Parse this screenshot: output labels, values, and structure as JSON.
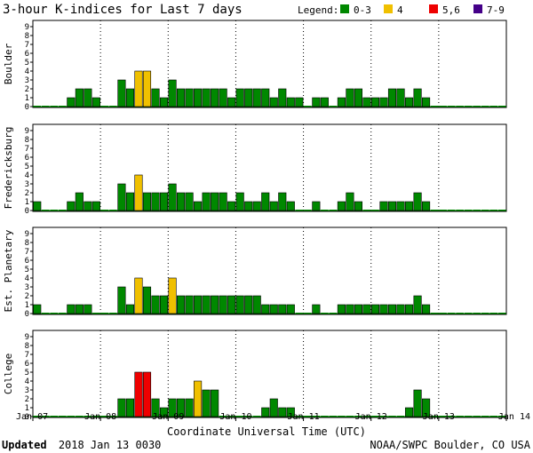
{
  "chart_data": {
    "type": "bar",
    "title": "3-hour K-indices for Last 7 days",
    "legend": {
      "label": "Legend:",
      "position": "top-right",
      "entries": [
        {
          "label": "0-3",
          "color": "#008800"
        },
        {
          "label": "4",
          "color": "#f0c000"
        },
        {
          "label": "5,6",
          "color": "#ee0000"
        },
        {
          "label": "7-9",
          "color": "#440088"
        }
      ]
    },
    "xlabel": "Coordinate Universal Time (UTC)",
    "date_ticks": [
      "Jan 07",
      "Jan 08",
      "Jan 09",
      "Jan 10",
      "Jan 11",
      "Jan 12",
      "Jan 13",
      "Jan 14"
    ],
    "y_ticks": [
      "0",
      "1",
      "2",
      "3",
      "4",
      "5",
      "6",
      "7",
      "8",
      "9"
    ],
    "ylim": [
      0,
      9
    ],
    "bins_per_day": 8,
    "series": [
      {
        "name": "Boulder",
        "values": [
          0,
          0,
          0,
          0,
          1,
          2,
          2,
          1,
          0,
          0,
          3,
          2,
          4,
          4,
          2,
          1,
          3,
          2,
          2,
          2,
          2,
          2,
          2,
          1,
          2,
          2,
          2,
          2,
          1,
          2,
          1,
          1,
          0,
          1,
          1,
          0,
          1,
          2,
          2,
          1,
          1,
          1,
          2,
          2,
          1,
          2,
          1,
          0,
          0,
          0,
          0,
          0,
          0,
          0,
          0,
          0
        ]
      },
      {
        "name": "Fredericksburg",
        "values": [
          1,
          0,
          0,
          0,
          1,
          2,
          1,
          1,
          0,
          0,
          3,
          2,
          4,
          2,
          2,
          2,
          3,
          2,
          2,
          1,
          2,
          2,
          2,
          1,
          2,
          1,
          1,
          2,
          1,
          2,
          1,
          0,
          0,
          1,
          0,
          0,
          1,
          2,
          1,
          0,
          0,
          1,
          1,
          1,
          1,
          2,
          1,
          0,
          0,
          0,
          0,
          0,
          0,
          0,
          0,
          0
        ]
      },
      {
        "name": "Est. Planetary",
        "values": [
          1,
          0,
          0,
          0,
          1,
          1,
          1,
          0,
          0,
          0,
          3,
          1,
          4,
          3,
          2,
          2,
          4,
          2,
          2,
          2,
          2,
          2,
          2,
          2,
          2,
          2,
          2,
          1,
          1,
          1,
          1,
          0,
          0,
          1,
          0,
          0,
          1,
          1,
          1,
          1,
          1,
          1,
          1,
          1,
          1,
          2,
          1,
          0,
          0,
          0,
          0,
          0,
          0,
          0,
          0,
          0
        ]
      },
      {
        "name": "College",
        "values": [
          0,
          0,
          0,
          0,
          0,
          0,
          0,
          0,
          0,
          0,
          2,
          2,
          5,
          5,
          2,
          1,
          2,
          2,
          2,
          4,
          3,
          3,
          0,
          0,
          0,
          0,
          0,
          1,
          2,
          1,
          1,
          0,
          0,
          0,
          0,
          0,
          0,
          0,
          0,
          0,
          0,
          0,
          0,
          0,
          1,
          3,
          2,
          0,
          0,
          0,
          0,
          0,
          0,
          0,
          0,
          0
        ]
      }
    ]
  },
  "footer": {
    "updated_label": "Updated",
    "updated_value": "2018 Jan 13 0030",
    "credit": "NOAA/SWPC Boulder, CO USA"
  }
}
